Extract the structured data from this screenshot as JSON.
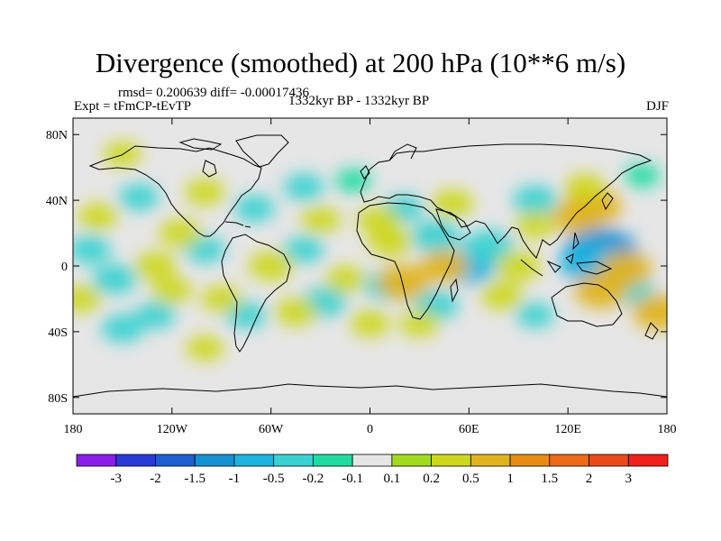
{
  "chart_data": {
    "type": "heatmap",
    "title": "Divergence (smoothed) at 200 hPa (10**6 m/s)",
    "stats_line": "rmsd= 0.200639 diff= -0.00017436",
    "experiment": "Expt = tFmCP-tEvTP",
    "period": "1332kyr BP - 1332kyr BP",
    "season": "DJF",
    "x_ticks": [
      "180",
      "120W",
      "60W",
      "0",
      "60E",
      "120E",
      "180"
    ],
    "x_tick_values": [
      -180,
      -120,
      -60,
      0,
      60,
      120,
      180
    ],
    "y_ticks": [
      "80N",
      "40N",
      "0",
      "40S",
      "80S"
    ],
    "y_tick_values": [
      80,
      40,
      0,
      -40,
      -80
    ],
    "xlim": [
      -180,
      180
    ],
    "ylim": [
      -90,
      90
    ],
    "colorbar": {
      "labels": [
        "-3",
        "-2",
        "-1.5",
        "-1",
        "-0.5",
        "-0.2",
        "-0.1",
        "0.1",
        "0.2",
        "0.5",
        "1",
        "1.5",
        "2",
        "3"
      ],
      "colors": [
        "#8a1ee6",
        "#2a3ad6",
        "#1e5fd0",
        "#1592d2",
        "#1cb4e0",
        "#38d2d2",
        "#20dca0",
        "#e6e6e6",
        "#a2dc1e",
        "#cdd81c",
        "#e0b41e",
        "#e88c14",
        "#ec6a18",
        "#ea4a1a",
        "#f0201a"
      ]
    },
    "anomalies": [
      {
        "lon": 140,
        "lat": 8,
        "value": -1.1
      },
      {
        "lon": 132,
        "lat": 2,
        "value": -0.7
      },
      {
        "lon": 60,
        "lat": 0,
        "value": -0.6
      },
      {
        "lon": 72,
        "lat": 12,
        "value": -0.5
      },
      {
        "lon": 100,
        "lat": 40,
        "value": -0.4
      },
      {
        "lon": 40,
        "lat": 18,
        "value": -0.5
      },
      {
        "lon": 10,
        "lat": -12,
        "value": -0.4
      },
      {
        "lon": 40,
        "lat": -24,
        "value": -0.4
      },
      {
        "lon": 20,
        "lat": 35,
        "value": -0.3
      },
      {
        "lon": -40,
        "lat": 10,
        "value": -0.3
      },
      {
        "lon": -28,
        "lat": -22,
        "value": -0.4
      },
      {
        "lon": -100,
        "lat": 10,
        "value": -0.3
      },
      {
        "lon": -170,
        "lat": 10,
        "value": -0.35
      },
      {
        "lon": -155,
        "lat": -8,
        "value": -0.4
      },
      {
        "lon": -140,
        "lat": 42,
        "value": -0.3
      },
      {
        "lon": -70,
        "lat": 35,
        "value": -0.3
      },
      {
        "lon": -75,
        "lat": -30,
        "value": -0.3
      },
      {
        "lon": -150,
        "lat": -38,
        "value": -0.35
      },
      {
        "lon": -130,
        "lat": -30,
        "value": -0.3
      },
      {
        "lon": -40,
        "lat": 48,
        "value": -0.3
      },
      {
        "lon": -10,
        "lat": 52,
        "value": -0.2
      },
      {
        "lon": 160,
        "lat": -15,
        "value": -0.3
      },
      {
        "lon": 100,
        "lat": -30,
        "value": -0.25
      },
      {
        "lon": 165,
        "lat": 55,
        "value": -0.2
      },
      {
        "lon": 135,
        "lat": 36,
        "value": 0.7
      },
      {
        "lon": 125,
        "lat": 30,
        "value": 0.5
      },
      {
        "lon": 155,
        "lat": -2,
        "value": 0.6
      },
      {
        "lon": 140,
        "lat": -15,
        "value": 0.6
      },
      {
        "lon": 175,
        "lat": -28,
        "value": 0.6
      },
      {
        "lon": 20,
        "lat": -10,
        "value": 0.6
      },
      {
        "lon": 45,
        "lat": 0,
        "value": 0.5
      },
      {
        "lon": 12,
        "lat": 15,
        "value": 0.4
      },
      {
        "lon": 5,
        "lat": 28,
        "value": 0.35
      },
      {
        "lon": 50,
        "lat": 38,
        "value": 0.35
      },
      {
        "lon": 90,
        "lat": 0,
        "value": 0.4
      },
      {
        "lon": 80,
        "lat": -18,
        "value": 0.35
      },
      {
        "lon": -60,
        "lat": 0,
        "value": 0.4
      },
      {
        "lon": -45,
        "lat": -28,
        "value": 0.35
      },
      {
        "lon": -30,
        "lat": 28,
        "value": 0.3
      },
      {
        "lon": -115,
        "lat": 20,
        "value": 0.35
      },
      {
        "lon": -130,
        "lat": 0,
        "value": 0.35
      },
      {
        "lon": -165,
        "lat": 30,
        "value": 0.3
      },
      {
        "lon": -175,
        "lat": -20,
        "value": 0.3
      },
      {
        "lon": -90,
        "lat": -20,
        "value": 0.3
      },
      {
        "lon": -100,
        "lat": 45,
        "value": 0.3
      },
      {
        "lon": 130,
        "lat": 48,
        "value": 0.3
      },
      {
        "lon": -150,
        "lat": 68,
        "value": 0.25
      },
      {
        "lon": -100,
        "lat": -50,
        "value": 0.25
      },
      {
        "lon": 30,
        "lat": -35,
        "value": 0.3
      },
      {
        "lon": 0,
        "lat": -35,
        "value": 0.3
      },
      {
        "lon": -15,
        "lat": -8,
        "value": 0.3
      },
      {
        "lon": 100,
        "lat": 25,
        "value": 0.3
      },
      {
        "lon": -120,
        "lat": -15,
        "value": 0.3
      }
    ]
  },
  "colors": {
    "background": "#e6e6e6",
    "coast": "#000000",
    "frame": "#000000"
  }
}
